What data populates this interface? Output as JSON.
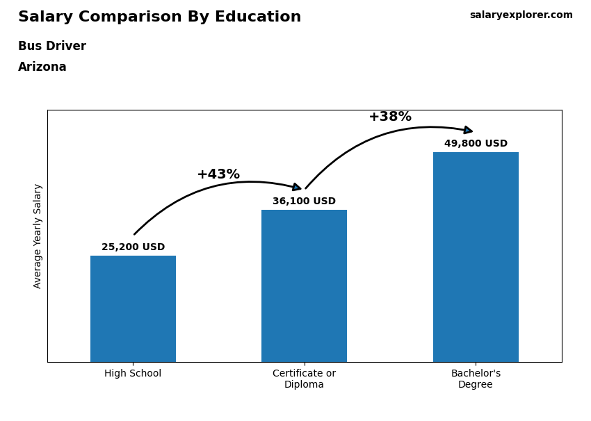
{
  "chart_data": {
    "type": "bar",
    "title": "Salary Comparison By Education",
    "subtitle": "Bus Driver",
    "y_label": "Average Yearly Salary",
    "categories": [
      "High School",
      "Certificate or\nDiploma",
      "Bachelor's\nDegree"
    ],
    "values": [
      25200,
      36100,
      49800
    ],
    "value_labels": [
      "25,200 USD",
      "36,100 USD",
      "49,800 USD"
    ],
    "data_labels": true,
    "ylim": [
      0,
      60000
    ],
    "tick_labels": "x",
    "grid": false,
    "annotations": [
      "Arizona",
      "salaryexplorer.com",
      {
        "text": "+43%",
        "from": "High School",
        "to": "Certificate or\nDiploma"
      },
      {
        "text": "+38%",
        "from": "Certificate or\nDiploma",
        "to": "Bachelor's\nDegree"
      }
    ]
  }
}
